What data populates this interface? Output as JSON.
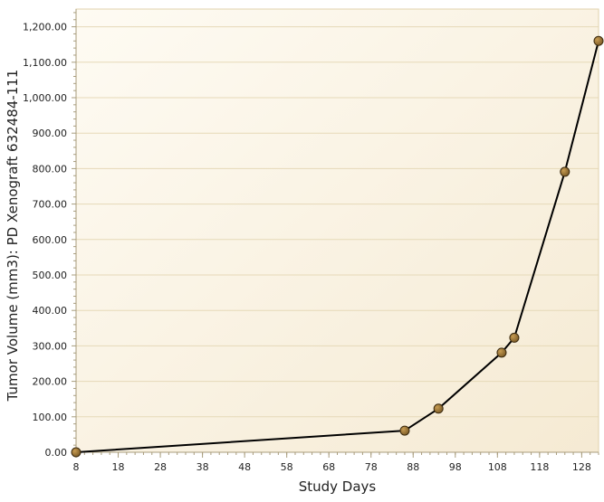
{
  "chart_data": {
    "type": "line",
    "title": "",
    "xlabel": "Study Days",
    "ylabel": "Tumor Volume (mm3): PD Xenograft 632484-111",
    "xlim": [
      8,
      132
    ],
    "ylim": [
      0,
      1250
    ],
    "x_ticks": [
      "8",
      "18",
      "28",
      "38",
      "48",
      "58",
      "68",
      "78",
      "88",
      "98",
      "108",
      "118",
      "128"
    ],
    "y_ticks": [
      "0.00",
      "100.00",
      "200.00",
      "300.00",
      "400.00",
      "500.00",
      "600.00",
      "700.00",
      "800.00",
      "900.00",
      "1,000.00",
      "1,100.00",
      "1,200.00"
    ],
    "grid": "horizontal",
    "series": [
      {
        "points": [
          {
            "x": 8,
            "y": 0
          },
          {
            "x": 86,
            "y": 61
          },
          {
            "x": 94,
            "y": 123
          },
          {
            "x": 109,
            "y": 281
          },
          {
            "x": 112,
            "y": 323
          },
          {
            "x": 124,
            "y": 791
          },
          {
            "x": 132,
            "y": 1160
          }
        ]
      }
    ],
    "colors": {
      "line": "#000000",
      "marker_fill": "#7a5a26",
      "marker_stroke": "#3b2a0e",
      "plot_bg_light": "#fefbf3",
      "plot_bg_dark": "#f5ead3",
      "grid": "#e6d9b8",
      "axis": "#a89c7c"
    }
  }
}
